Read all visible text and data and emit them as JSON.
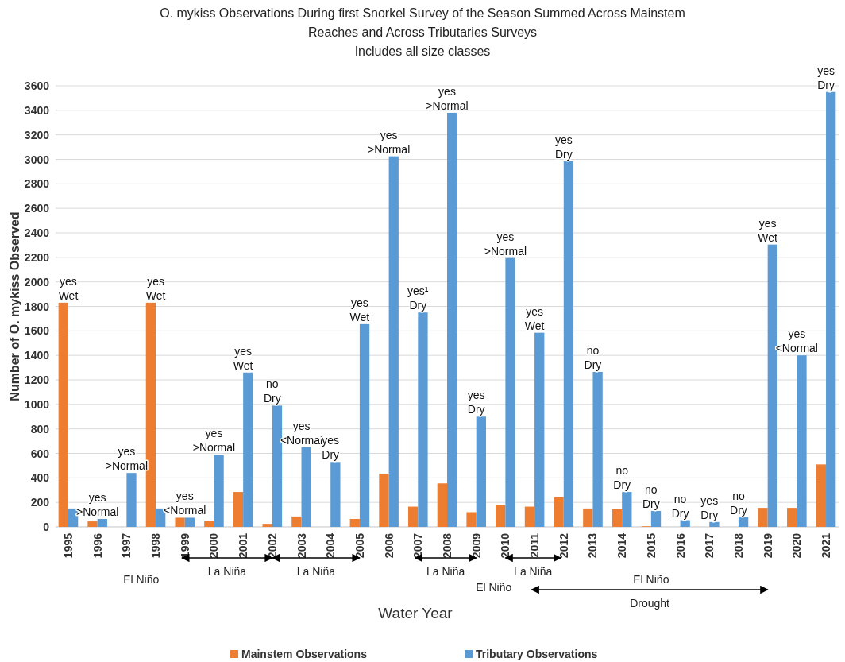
{
  "chart_data": {
    "type": "bar",
    "title": "O. mykiss Observations During first Snorkel Survey of the Season Summed Across Mainstem Reaches and Across Tributaries Surveys",
    "subtitle": "Includes all size classes",
    "xlabel": "Water Year",
    "ylabel": "Number of O. mykiss Observed",
    "categories": [
      "1995",
      "1996",
      "1997",
      "1998",
      "1999",
      "2000",
      "2001",
      "2002",
      "2003",
      "2004",
      "2005",
      "2006",
      "2007",
      "2008",
      "2009",
      "2010",
      "2011",
      "2012",
      "2013",
      "2014",
      "2015",
      "2016",
      "2017",
      "2018",
      "2019",
      "2020",
      "2021"
    ],
    "series": [
      {
        "name": "Mainstem Observations",
        "color": "#ed7d31",
        "values": [
          1830,
          45,
          0,
          1830,
          75,
          50,
          285,
          25,
          85,
          0,
          65,
          435,
          165,
          355,
          120,
          180,
          165,
          240,
          150,
          145,
          5,
          0,
          0,
          0,
          155,
          155,
          510
        ]
      },
      {
        "name": "Tributary Observations",
        "color": "#5b9bd5",
        "values": [
          150,
          65,
          440,
          150,
          75,
          590,
          1260,
          990,
          650,
          530,
          1655,
          3025,
          1750,
          3380,
          900,
          2195,
          1585,
          2985,
          1265,
          285,
          130,
          55,
          40,
          80,
          2305,
          1400,
          3550
        ]
      }
    ],
    "ylim": [
      0,
      3600
    ],
    "yticks": [
      0,
      200,
      400,
      600,
      800,
      1000,
      1200,
      1400,
      1600,
      1800,
      2000,
      2200,
      2400,
      2600,
      2800,
      3000,
      3200,
      3400,
      3600
    ],
    "grid": "y",
    "legend": "bottom",
    "annotations": [
      {
        "text": "yes\nWet",
        "x": "1995",
        "y": 1830
      },
      {
        "text": "yes\n>Normal",
        "x": "1996",
        "y": 65
      },
      {
        "text": "yes\n>Normal",
        "x": "1997",
        "y": 440
      },
      {
        "text": "yes\nWet",
        "x": "1998",
        "y": 1830
      },
      {
        "text": "yes\n<Normal",
        "x": "1999",
        "y": 75
      },
      {
        "text": "yes\n>Normal",
        "x": "2000",
        "y": 590
      },
      {
        "text": "yes\nWet",
        "x": "2001",
        "y": 1260
      },
      {
        "text": "no\nDry",
        "x": "2002",
        "y": 990
      },
      {
        "text": "yes\n<Normal",
        "x": "2003",
        "y": 650
      },
      {
        "text": "yes\nDry",
        "x": "2004",
        "y": 530
      },
      {
        "text": "yes\nWet",
        "x": "2005",
        "y": 1655
      },
      {
        "text": "yes\n>Normal",
        "x": "2006",
        "y": 3025
      },
      {
        "text": "yes¹\nDry",
        "x": "2007",
        "y": 1750
      },
      {
        "text": "yes\n>Normal",
        "x": "2008",
        "y": 3380
      },
      {
        "text": "yes\nDry",
        "x": "2009",
        "y": 900
      },
      {
        "text": "yes\n>Normal",
        "x": "2010",
        "y": 2195
      },
      {
        "text": "yes\nWet",
        "x": "2011",
        "y": 1585
      },
      {
        "text": "yes\nDry",
        "x": "2012",
        "y": 2985
      },
      {
        "text": "no\nDry",
        "x": "2013",
        "y": 1265
      },
      {
        "text": "no\nDry",
        "x": "2014",
        "y": 285
      },
      {
        "text": "no\nDry",
        "x": "2015",
        "y": 130
      },
      {
        "text": "no\nDry",
        "x": "2016",
        "y": 55
      },
      {
        "text": "yes\nDry",
        "x": "2017",
        "y": 40
      },
      {
        "text": "no\nDry",
        "x": "2018",
        "y": 80
      },
      {
        "text": "yes\nWet",
        "x": "2019",
        "y": 2305
      },
      {
        "text": "yes\n<Normal",
        "x": "2020",
        "y": 1400
      },
      {
        "text": "yes\nDry",
        "x": "2021",
        "y": 3550
      },
      "El Niño",
      "La Niña",
      "La Niña",
      "La Niña",
      "El Niño",
      "La Niña",
      "El Niño",
      "Drought"
    ]
  }
}
